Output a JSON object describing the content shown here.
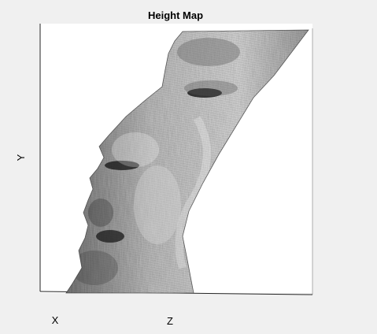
{
  "window": {
    "background": "#f0f0f0"
  },
  "chart_data": {
    "type": "surface",
    "title": "Height Map",
    "xlabel": "X",
    "ylabel": "Y",
    "zlabel": "Z",
    "render": "grayscale-mesh",
    "grid": false,
    "legend": "none",
    "colors": {
      "axes_background": "#ffffff",
      "axes_line": "#262626",
      "mesh_light": "#e0e0e0",
      "mesh_dark": "#1a1a1a",
      "text": "#000000"
    }
  }
}
